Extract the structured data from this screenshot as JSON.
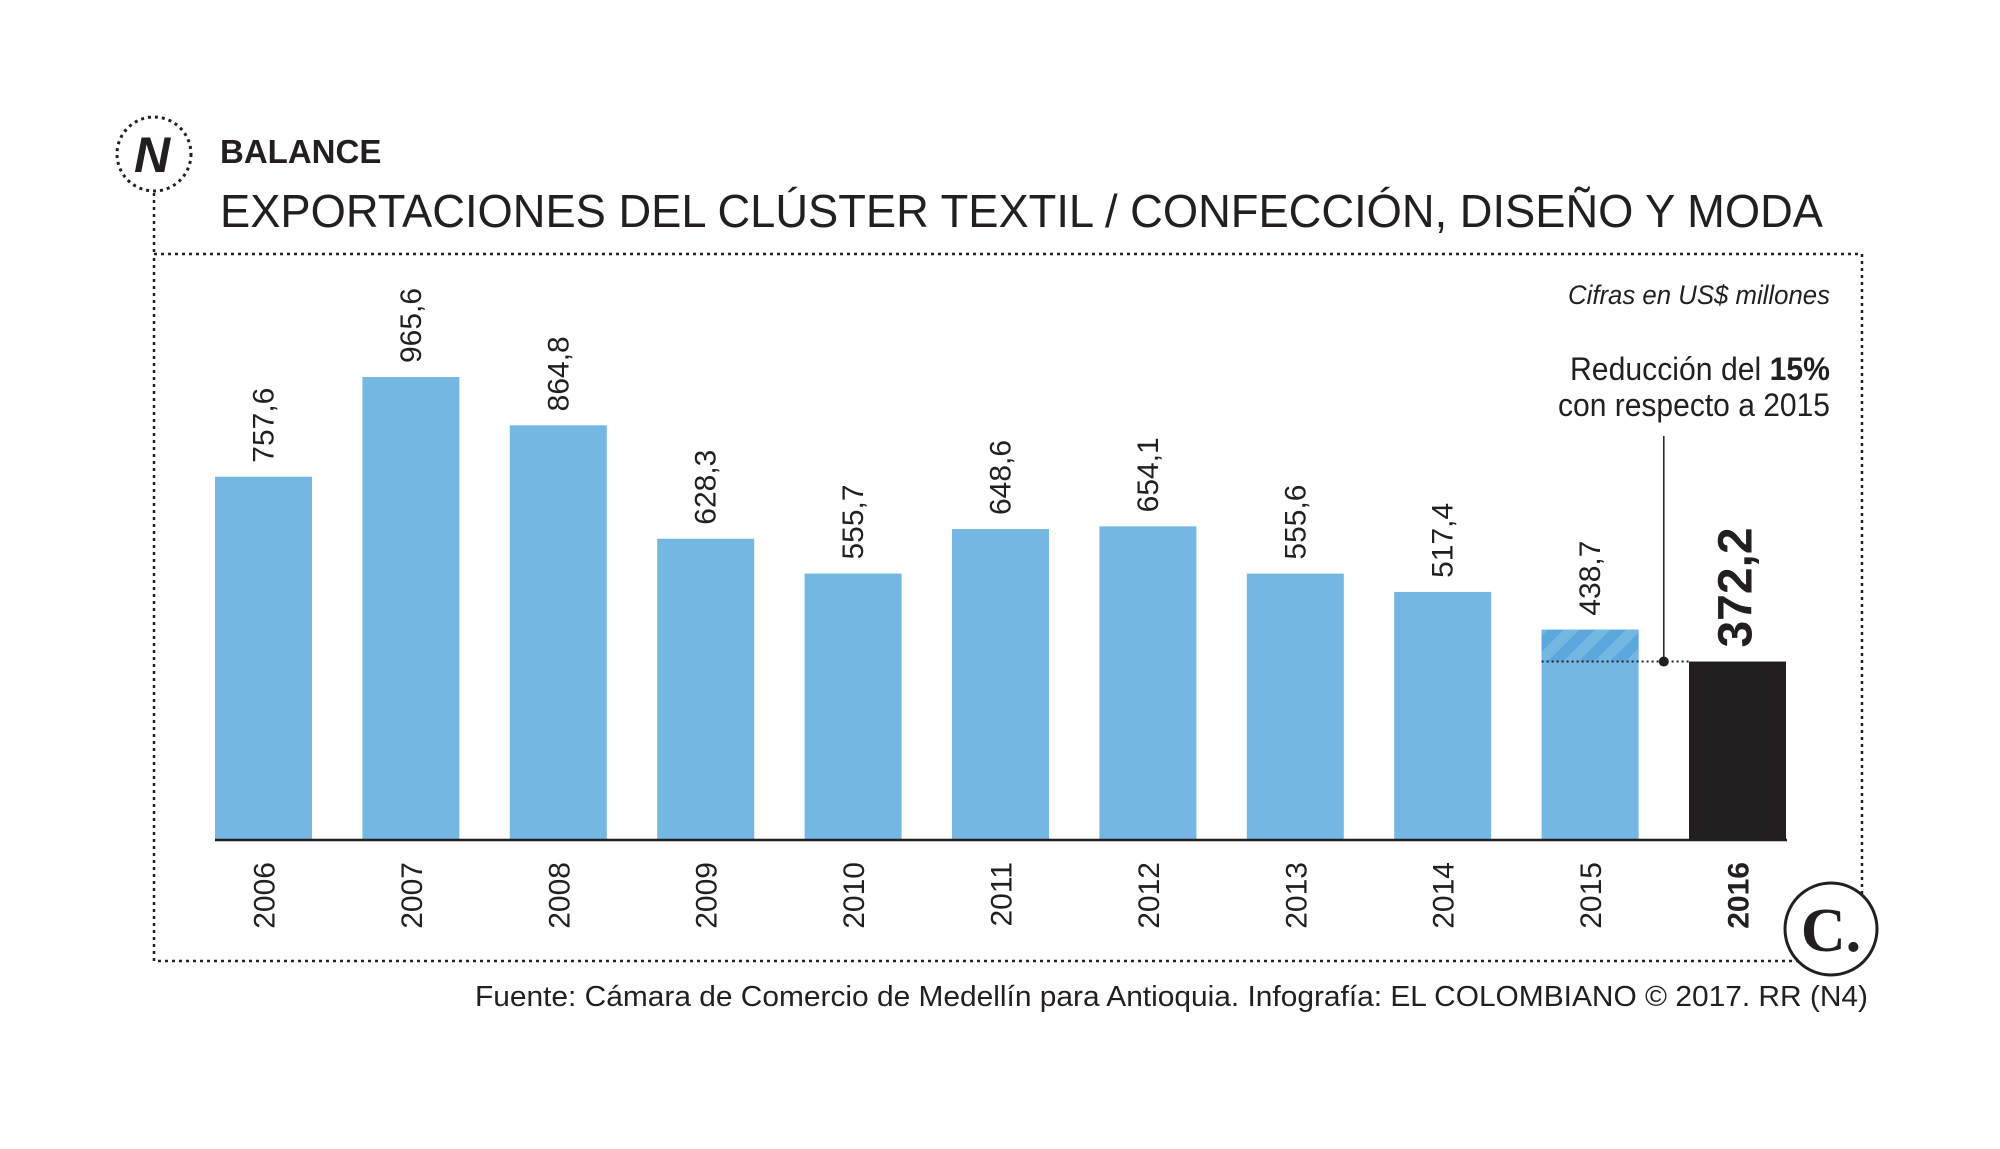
{
  "header": {
    "section": "BALANCE",
    "title": "EXPORTACIONES DEL CLÚSTER TEXTIL / CONFECCIÓN, DISEÑO Y MODA",
    "logo_letter": "N"
  },
  "chart_data": {
    "type": "bar",
    "title": "EXPORTACIONES DEL CLÚSTER TEXTIL / CONFECCIÓN, DISEÑO Y MODA",
    "unit_note": "Cifras en US$ millones",
    "categories": [
      "2006",
      "2007",
      "2008",
      "2009",
      "2010",
      "2011",
      "2012",
      "2013",
      "2014",
      "2015",
      "2016"
    ],
    "values": [
      757.6,
      965.6,
      864.8,
      628.3,
      555.7,
      648.6,
      654.1,
      555.6,
      517.4,
      438.7,
      372.2
    ],
    "labels": [
      "757,6",
      "965,6",
      "864,8",
      "628,3",
      "555,7",
      "648,6",
      "654,1",
      "555,6",
      "517,4",
      "438,7",
      "372,2"
    ],
    "highlight_index": 10,
    "ylim": [
      0,
      965.6
    ],
    "grid": false,
    "xlabel": "",
    "ylabel": "",
    "annotation": {
      "line1": "Reducción del ",
      "line1_bold": "15%",
      "line2": "con respecto a 2015"
    },
    "colors": {
      "bar": "#74b7e3",
      "highlight": "#231f20",
      "hatch": "#5aa8de"
    }
  },
  "footer": {
    "source": "Fuente: Cámara de Comercio de Medellín para Antioquia. Infografía: EL COLOMBIANO © 2017. RR (N4)",
    "logo_letter": "C."
  }
}
